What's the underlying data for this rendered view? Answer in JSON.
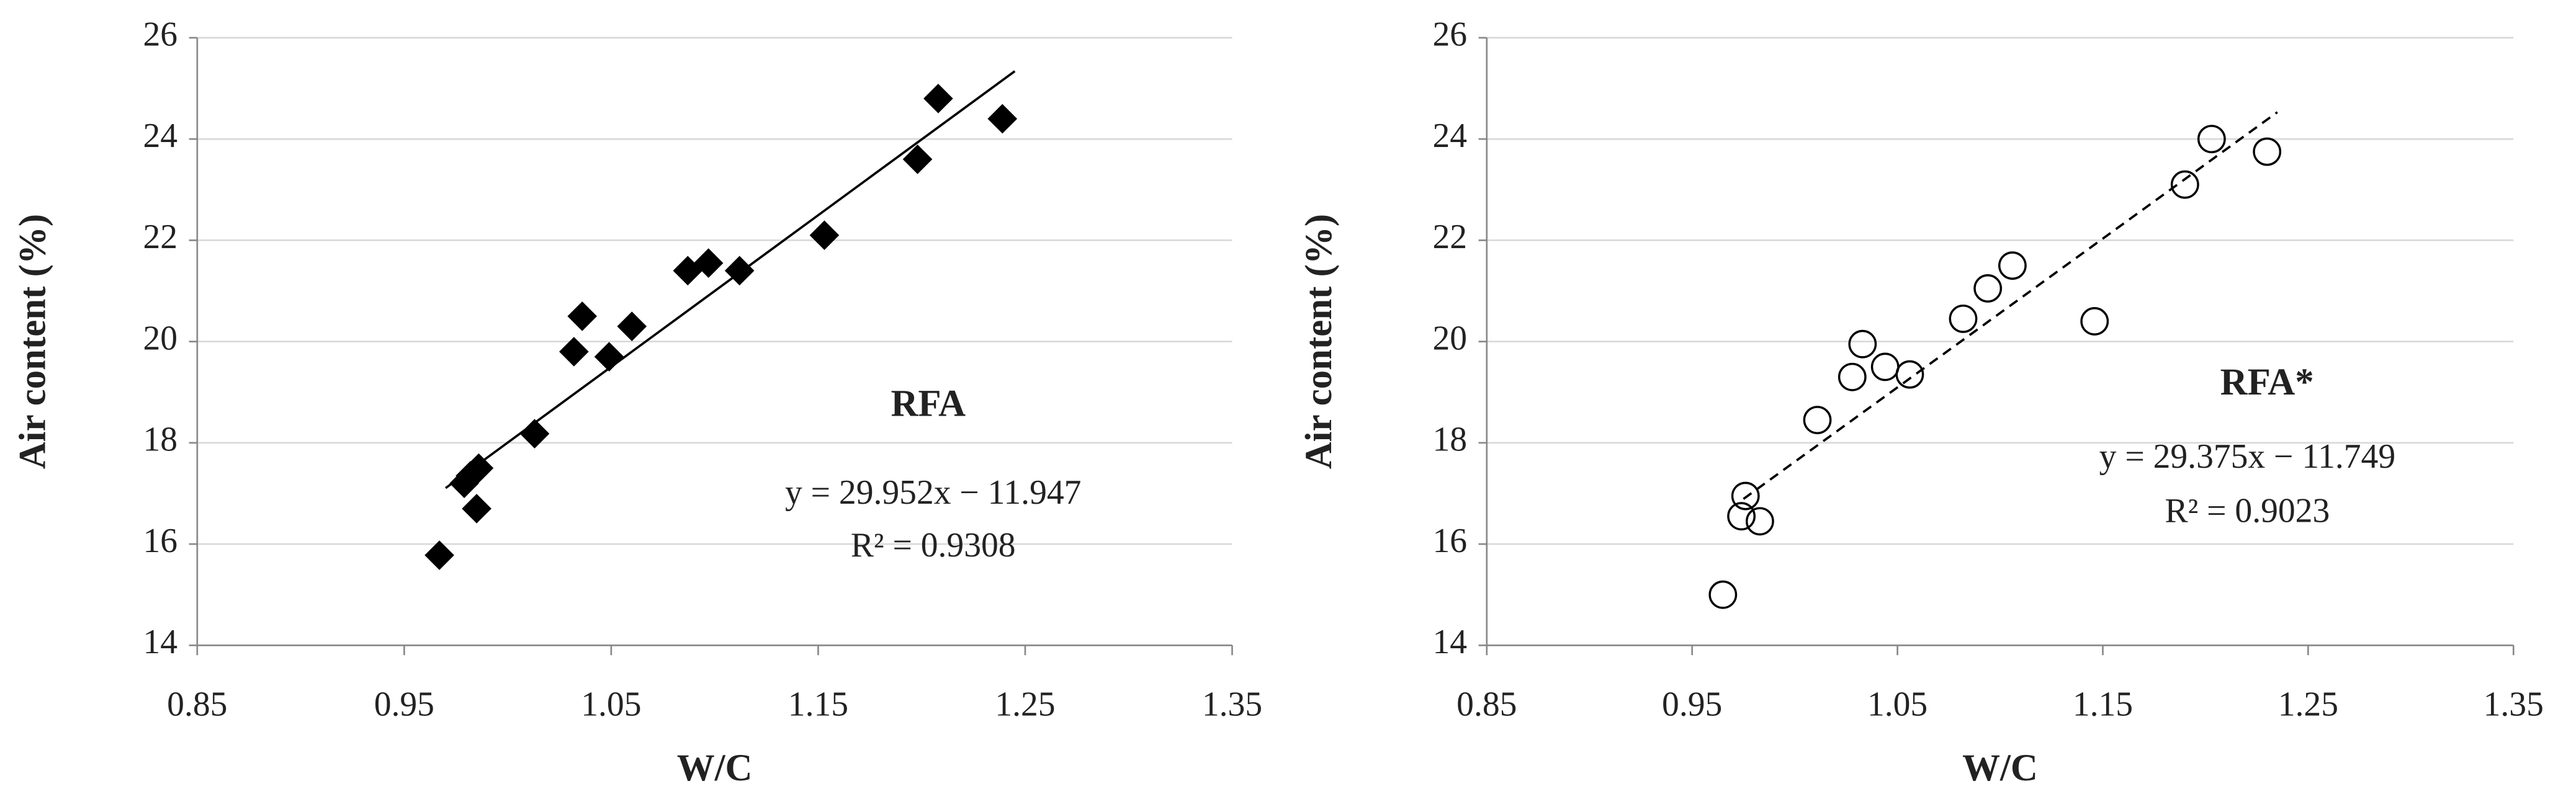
{
  "chart_data": [
    {
      "type": "scatter",
      "x_label": "W/C",
      "y_label": "Air content (%)",
      "x": [
        0.967,
        0.979,
        0.982,
        0.986,
        0.985,
        1.013,
        1.032,
        1.036,
        1.049,
        1.06,
        1.087,
        1.097,
        1.112,
        1.153,
        1.198,
        1.208,
        1.239
      ],
      "values": [
        15.78,
        17.2,
        17.35,
        17.5,
        16.7,
        18.18,
        19.8,
        20.5,
        19.7,
        20.3,
        21.4,
        21.55,
        21.4,
        22.1,
        23.6,
        24.8,
        24.4
      ],
      "marker": "diamond",
      "color": "#000000",
      "trendline": {
        "x": [
          0.97,
          1.245
        ],
        "y": [
          17.106,
          25.34
        ],
        "style": "solid"
      },
      "annotations": [
        "RFA",
        "y = 29.952x − 11.947",
        "R² = 0.9308"
      ],
      "xlim": [
        0.85,
        1.35
      ],
      "xticks": [
        0.85,
        0.95,
        1.05,
        1.15,
        1.25,
        1.35
      ],
      "ylim": [
        14,
        26
      ],
      "yticks": [
        14,
        16,
        18,
        20,
        22,
        24,
        26
      ],
      "grid": true
    },
    {
      "type": "scatter",
      "x_label": "W/C",
      "y_label": "Air content (%)",
      "x": [
        0.965,
        0.974,
        0.976,
        0.983,
        1.011,
        1.028,
        1.033,
        1.044,
        1.056,
        1.082,
        1.094,
        1.106,
        1.146,
        1.19,
        1.203,
        1.23
      ],
      "values": [
        15.0,
        16.55,
        16.95,
        16.45,
        18.45,
        19.3,
        19.95,
        19.5,
        19.35,
        20.45,
        21.05,
        21.5,
        20.4,
        23.1,
        24.0,
        23.75
      ],
      "marker": "circle",
      "color": "#000000",
      "trendline": {
        "x": [
          0.975,
          1.235
        ],
        "y": [
          16.891,
          24.53
        ],
        "style": "dashed"
      },
      "annotations": [
        "RFA*",
        "y = 29.375x − 11.749",
        "R² = 0.9023"
      ],
      "xlim": [
        0.85,
        1.35
      ],
      "xticks": [
        0.85,
        0.95,
        1.05,
        1.15,
        1.25,
        1.35
      ],
      "ylim": [
        14,
        26
      ],
      "yticks": [
        14,
        16,
        18,
        20,
        22,
        24,
        26
      ],
      "grid": true
    }
  ]
}
